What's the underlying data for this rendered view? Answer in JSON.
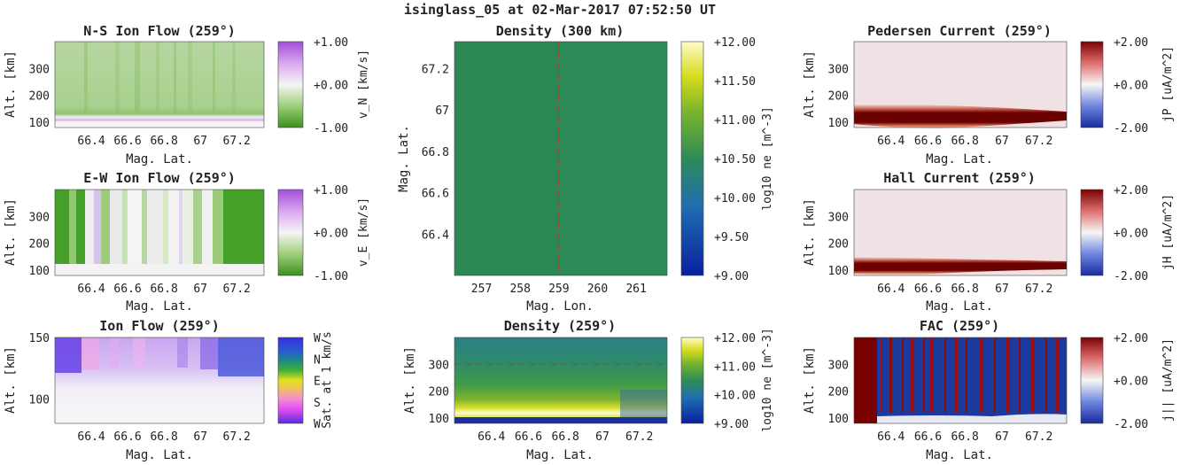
{
  "figure_title": "isinglass_05 at 02-Mar-2017 07:52:50 UT",
  "colors": {
    "green": "#3a9a1f",
    "purple": "#a24fd8",
    "pedersen_dark": "#6b0000",
    "pedersen_bg": "#f0e2e4",
    "density_field": "#2e8b57",
    "fac_blue": "#1b3a9e",
    "dashed_line": "#c0392b"
  },
  "chart_data": [
    {
      "type": "heatmap",
      "title": "N-S Ion Flow (259°)",
      "xlabel": "Mag. Lat.",
      "ylabel": "Alt. [km]",
      "xticks": [
        "66.4",
        "66.6",
        "66.8",
        "67",
        "67.2"
      ],
      "yticks": [
        "100",
        "200",
        "300"
      ],
      "xlim": [
        66.2,
        67.35
      ],
      "ylim": [
        80,
        400
      ],
      "colorbar": {
        "label": "v_N [km/s]",
        "ticks": [
          "+1.00",
          "+0.00",
          "-1.00"
        ],
        "range": [
          -1.0,
          1.0
        ],
        "colormap": "green-white-purple"
      }
    },
    {
      "type": "heatmap",
      "title": "E-W Ion Flow (259°)",
      "xlabel": "Mag. Lat.",
      "ylabel": "Alt. [km]",
      "xticks": [
        "66.4",
        "66.6",
        "66.8",
        "67",
        "67.2"
      ],
      "yticks": [
        "100",
        "200",
        "300"
      ],
      "xlim": [
        66.2,
        67.35
      ],
      "ylim": [
        80,
        400
      ],
      "colorbar": {
        "label": "v_E [km/s]",
        "ticks": [
          "+1.00",
          "+0.00",
          "-1.00"
        ],
        "range": [
          -1.0,
          1.0
        ],
        "colormap": "green-white-purple"
      }
    },
    {
      "type": "heatmap",
      "title": "Ion Flow (259°)",
      "xlabel": "Mag. Lat.",
      "ylabel": "Alt. [km]",
      "xticks": [
        "66.4",
        "66.6",
        "66.8",
        "67",
        "67.2"
      ],
      "yticks": [
        "150",
        "100"
      ],
      "xlim": [
        66.2,
        67.35
      ],
      "ylim": [
        80,
        150
      ],
      "colorbar": {
        "label": "Sat. at 1 km/s",
        "ticks": [
          "W",
          "N",
          "E",
          "S",
          "W"
        ],
        "colormap": "cyclic direction"
      }
    },
    {
      "type": "heatmap",
      "title": "Density (300 km)",
      "xlabel": "Mag. Lon.",
      "ylabel": "Mag. Lat.",
      "xticks": [
        "257",
        "258",
        "259",
        "260",
        "261"
      ],
      "yticks": [
        "67.2",
        "67",
        "66.8",
        "66.6",
        "66.4"
      ],
      "xlim": [
        256.3,
        261.8
      ],
      "ylim": [
        66.2,
        67.33
      ],
      "reference_line": {
        "axis": "x",
        "value": 259,
        "style": "dashed"
      },
      "colorbar": {
        "label": "log10 ne [m^-3]",
        "ticks": [
          "+12.00",
          "+11.50",
          "+11.00",
          "+10.50",
          "+10.00",
          "+9.50",
          "+9.00"
        ],
        "range": [
          9.0,
          12.0
        ],
        "colormap": "blue-green-yellow"
      }
    },
    {
      "type": "heatmap",
      "title": "Density (259°)",
      "xlabel": "Mag. Lat.",
      "ylabel": "Alt. [km]",
      "xticks": [
        "66.4",
        "66.6",
        "66.8",
        "67",
        "67.2"
      ],
      "yticks": [
        "300",
        "200",
        "100"
      ],
      "xlim": [
        66.2,
        67.35
      ],
      "ylim": [
        80,
        400
      ],
      "reference_line": {
        "axis": "y",
        "value": 300,
        "style": "dashed"
      },
      "colorbar": {
        "label": "log10 ne [m^-3]",
        "ticks": [
          "+12.00",
          "+11.00",
          "+10.00",
          "+9.00"
        ],
        "range": [
          9.0,
          12.0
        ],
        "colormap": "blue-green-yellow"
      }
    },
    {
      "type": "heatmap",
      "title": "Pedersen Current (259°)",
      "xlabel": "Mag. Lat.",
      "ylabel": "Alt. [km]",
      "xticks": [
        "66.4",
        "66.6",
        "66.8",
        "67",
        "67.2"
      ],
      "yticks": [
        "300",
        "200",
        "100"
      ],
      "xlim": [
        66.2,
        67.35
      ],
      "ylim": [
        80,
        400
      ],
      "colorbar": {
        "label": "jP [uA/m^2]",
        "ticks": [
          "+2.00",
          "+0.00",
          "-2.00"
        ],
        "range": [
          -2.0,
          2.0
        ],
        "colormap": "blue-white-red"
      }
    },
    {
      "type": "heatmap",
      "title": "Hall Current (259°)",
      "xlabel": "Mag. Lat.",
      "ylabel": "Alt. [km]",
      "xticks": [
        "66.4",
        "66.6",
        "66.8",
        "67",
        "67.2"
      ],
      "yticks": [
        "300",
        "200",
        "100"
      ],
      "xlim": [
        66.2,
        67.35
      ],
      "ylim": [
        80,
        400
      ],
      "colorbar": {
        "label": "jH [uA/m^2]",
        "ticks": [
          "+2.00",
          "+0.00",
          "-2.00"
        ],
        "range": [
          -2.0,
          2.0
        ],
        "colormap": "blue-white-red"
      }
    },
    {
      "type": "heatmap",
      "title": "FAC (259°)",
      "xlabel": "Mag. Lat.",
      "ylabel": "Alt. [km]",
      "xticks": [
        "66.4",
        "66.6",
        "66.8",
        "67",
        "67.2"
      ],
      "yticks": [
        "300",
        "200",
        "100"
      ],
      "xlim": [
        66.2,
        67.35
      ],
      "ylim": [
        80,
        400
      ],
      "colorbar": {
        "label": "j|| [uA/m^2]",
        "ticks": [
          "+2.00",
          "+0.00",
          "-2.00"
        ],
        "range": [
          -2.0,
          2.0
        ],
        "colormap": "blue-white-red"
      }
    }
  ]
}
